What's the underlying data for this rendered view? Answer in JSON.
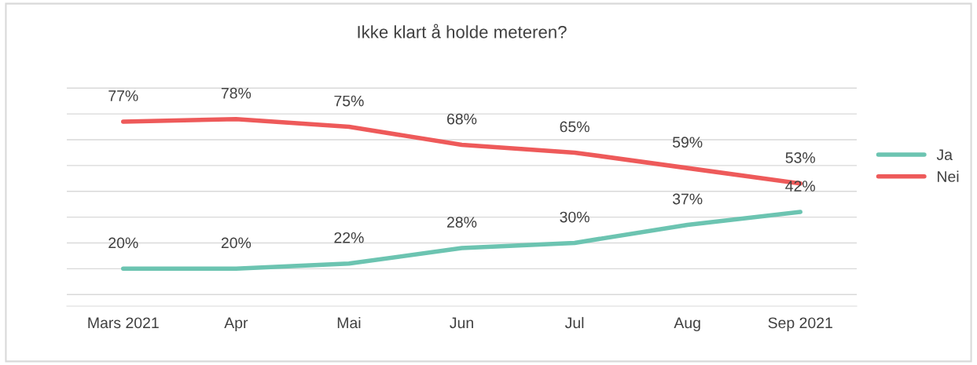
{
  "chart_data": {
    "type": "line",
    "title": "Ikke klart å holde meteren?",
    "categories": [
      "Mars 2021",
      "Apr",
      "Mai",
      "Jun",
      "Jul",
      "Aug",
      "Sep 2021"
    ],
    "series": [
      {
        "name": "Ja",
        "color": "#6cc4b1",
        "values": [
          20,
          20,
          22,
          28,
          30,
          37,
          42
        ],
        "value_labels": [
          "20%",
          "20%",
          "22%",
          "28%",
          "30%",
          "37%",
          "42%"
        ]
      },
      {
        "name": "Nei",
        "color": "#ee5a5a",
        "values": [
          77,
          78,
          75,
          68,
          65,
          59,
          53
        ],
        "value_labels": [
          "77%",
          "78%",
          "75%",
          "68%",
          "65%",
          "59%",
          "53%"
        ]
      }
    ],
    "tick_labels": "x",
    "grid": "y",
    "legend": "right",
    "marker": "none",
    "line_style": "solid"
  }
}
